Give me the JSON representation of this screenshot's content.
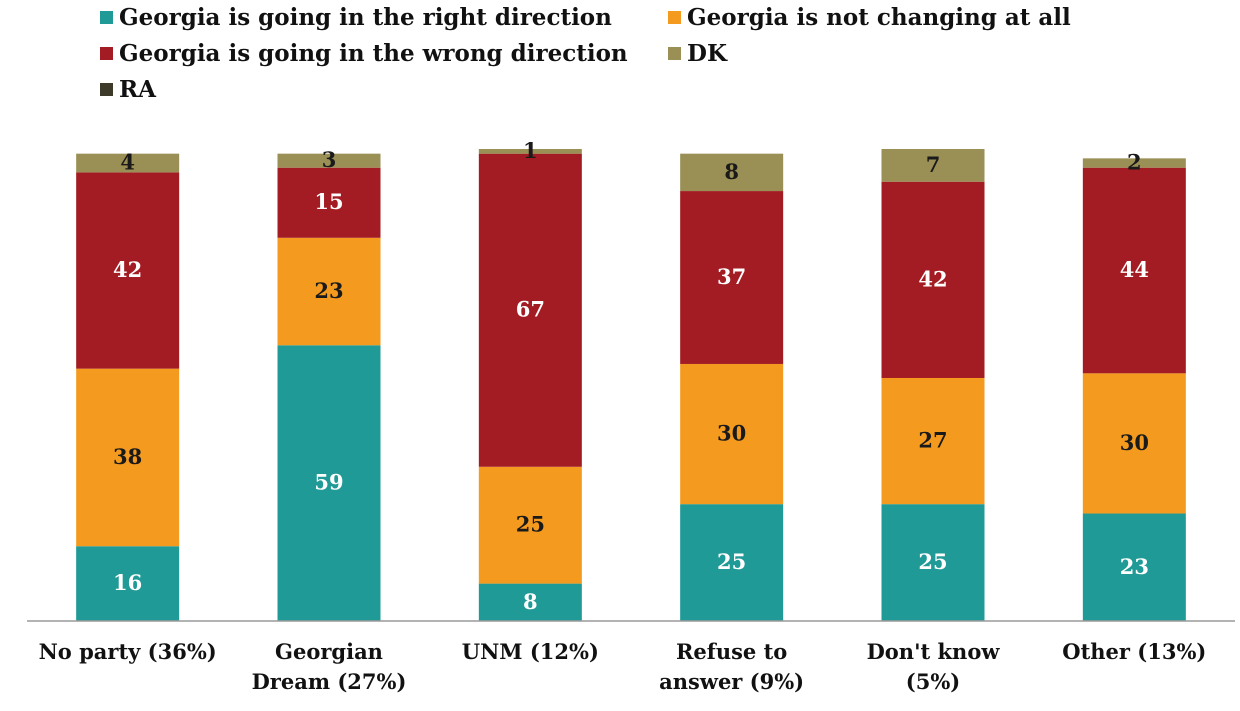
{
  "chart_data": {
    "type": "stacked_bar",
    "categories": [
      "No party (36%)",
      "Georgian\nDream (27%)",
      "UNM (12%)",
      "Refuse to\nanswer (9%)",
      "Don't know\n(5%)",
      "Other (13%)"
    ],
    "series": [
      {
        "name": "Georgia is going in the right direction",
        "color": "#1f9a96",
        "label_color": "#ffffff",
        "values": [
          16,
          59,
          8,
          25,
          25,
          23
        ]
      },
      {
        "name": "Georgia is not changing at all",
        "color": "#f39a1f",
        "label_color": "#1a1a1a",
        "values": [
          38,
          23,
          25,
          30,
          27,
          30
        ]
      },
      {
        "name": "Georgia is going in the wrong direction",
        "color": "#a31c23",
        "label_color": "#ffffff",
        "values": [
          42,
          15,
          67,
          37,
          42,
          44
        ]
      },
      {
        "name": "DK",
        "color": "#9a8f55",
        "label_color": "#1a1a1a",
        "values": [
          4,
          3,
          1,
          8,
          7,
          2
        ]
      },
      {
        "name": "RA",
        "color": "#3d3a2a",
        "label_color": "#ffffff",
        "values": [
          0,
          0,
          0,
          0,
          0,
          0
        ]
      }
    ]
  }
}
